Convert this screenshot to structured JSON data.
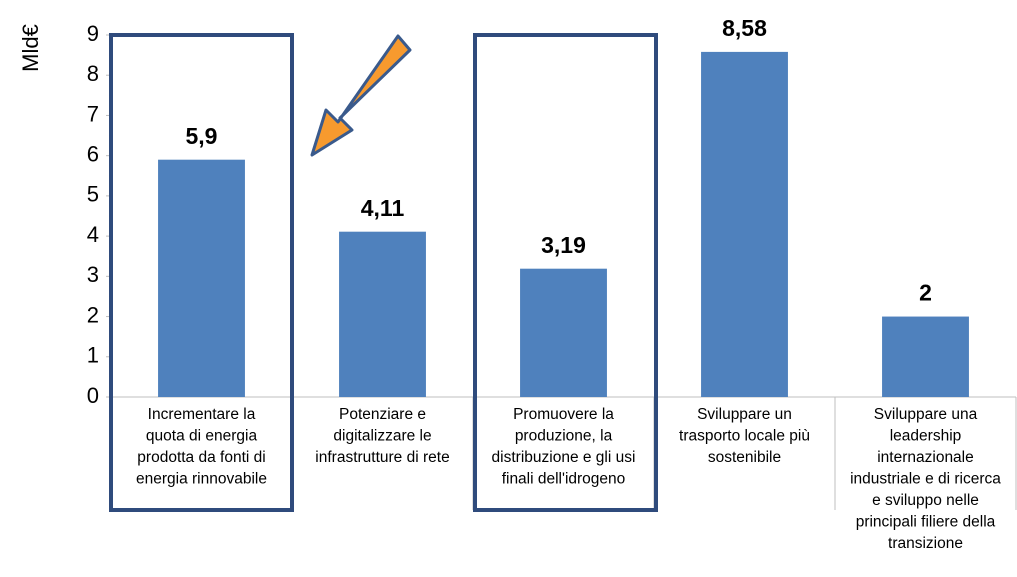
{
  "chart_data": {
    "type": "bar",
    "y_label": "Mld€",
    "categories": [
      "Incrementare la\nquota di energia\nprodotta da fonti di\nenergia rinnovabile",
      "Potenziare e\ndigitalizzare le\ninfrastrutture di rete",
      "Promuovere la\nproduzione, la\ndistribuzione e gli usi\nfinali dell'idrogeno",
      "Sviluppare un\ntrasporto locale più\nsostenibile",
      "Sviluppare una\nleadership\ninternazionale\nindustriale e di ricerca\ne sviluppo nelle\nprincipali filiere della\ntransizione"
    ],
    "values": [
      5.9,
      4.11,
      3.19,
      8.58,
      2
    ],
    "value_labels": [
      "5,9",
      "4,11",
      "3,19",
      "8,58",
      "2"
    ],
    "color": "#4f81bd",
    "ylim": [
      0,
      9
    ],
    "yticks": [
      0,
      1,
      2,
      3,
      4,
      5,
      6,
      7,
      8,
      9
    ],
    "grid": false
  }
}
